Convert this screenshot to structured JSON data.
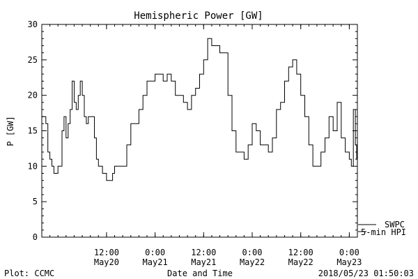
{
  "chart_data": {
    "type": "line",
    "title": "Hemispheric Power [GW]",
    "ylabel": "P [GW]",
    "xlabel": "Date and Time",
    "ylim": [
      0,
      30
    ],
    "yticks": [
      0,
      5,
      10,
      15,
      20,
      25,
      30
    ],
    "xlim": [
      "2018-05-19T20:00",
      "2018-05-23T02:00"
    ],
    "xticks": [
      {
        "time": "2018-05-20T12:00",
        "line1": "12:00",
        "line2": "May20"
      },
      {
        "time": "2018-05-21T00:00",
        "line1": "0:00",
        "line2": "May21"
      },
      {
        "time": "2018-05-21T12:00",
        "line1": "12:00",
        "line2": "May21"
      },
      {
        "time": "2018-05-22T00:00",
        "line1": "0:00",
        "line2": "May22"
      },
      {
        "time": "2018-05-22T12:00",
        "line1": "12:00",
        "line2": "May22"
      },
      {
        "time": "2018-05-23T00:00",
        "line1": "0:00",
        "line2": "May23"
      }
    ],
    "grid": false,
    "series": [
      {
        "name": "SWPC",
        "style": "solid",
        "x": [
          "2018-05-19T20:00",
          "2018-05-19T20:30",
          "2018-05-19T21:00",
          "2018-05-19T21:30",
          "2018-05-19T22:00",
          "2018-05-19T22:30",
          "2018-05-19T23:00",
          "2018-05-19T23:30",
          "2018-05-20T00:00",
          "2018-05-20T00:30",
          "2018-05-20T01:00",
          "2018-05-20T01:30",
          "2018-05-20T02:00",
          "2018-05-20T02:30",
          "2018-05-20T03:00",
          "2018-05-20T03:30",
          "2018-05-20T04:00",
          "2018-05-20T04:30",
          "2018-05-20T05:00",
          "2018-05-20T05:30",
          "2018-05-20T06:00",
          "2018-05-20T06:30",
          "2018-05-20T07:00",
          "2018-05-20T07:30",
          "2018-05-20T08:00",
          "2018-05-20T08:30",
          "2018-05-20T09:00",
          "2018-05-20T09:30",
          "2018-05-20T10:00",
          "2018-05-20T10:30",
          "2018-05-20T11:00",
          "2018-05-20T11:30",
          "2018-05-20T12:00",
          "2018-05-20T12:30",
          "2018-05-20T13:00",
          "2018-05-20T13:30",
          "2018-05-20T14:00",
          "2018-05-20T14:30",
          "2018-05-20T15:00",
          "2018-05-20T15:30",
          "2018-05-20T16:00",
          "2018-05-20T17:00",
          "2018-05-20T18:00",
          "2018-05-20T19:00",
          "2018-05-20T20:00",
          "2018-05-20T21:00",
          "2018-05-20T22:00",
          "2018-05-20T23:00",
          "2018-05-21T00:00",
          "2018-05-21T01:00",
          "2018-05-21T02:00",
          "2018-05-21T03:00",
          "2018-05-21T04:00",
          "2018-05-21T05:00",
          "2018-05-21T06:00",
          "2018-05-21T07:00",
          "2018-05-21T08:00",
          "2018-05-21T09:00",
          "2018-05-21T10:00",
          "2018-05-21T11:00",
          "2018-05-21T12:00",
          "2018-05-21T13:00",
          "2018-05-21T14:00",
          "2018-05-21T15:00",
          "2018-05-21T16:00",
          "2018-05-21T17:00",
          "2018-05-21T18:00",
          "2018-05-21T19:00",
          "2018-05-21T20:00",
          "2018-05-21T21:00",
          "2018-05-21T22:00",
          "2018-05-21T23:00",
          "2018-05-22T00:00",
          "2018-05-22T01:00",
          "2018-05-22T02:00",
          "2018-05-22T03:00",
          "2018-05-22T04:00",
          "2018-05-22T05:00",
          "2018-05-22T06:00",
          "2018-05-22T07:00",
          "2018-05-22T08:00",
          "2018-05-22T09:00",
          "2018-05-22T10:00",
          "2018-05-22T11:00",
          "2018-05-22T12:00",
          "2018-05-22T13:00",
          "2018-05-22T14:00",
          "2018-05-22T15:00",
          "2018-05-22T16:00",
          "2018-05-22T17:00",
          "2018-05-22T18:00",
          "2018-05-22T19:00",
          "2018-05-22T20:00",
          "2018-05-22T21:00",
          "2018-05-22T22:00",
          "2018-05-22T23:00",
          "2018-05-23T00:00",
          "2018-05-23T00:30",
          "2018-05-23T01:00",
          "2018-05-23T01:30",
          "2018-05-23T01:50"
        ],
        "y": [
          17,
          17,
          16,
          12,
          11,
          10,
          9,
          9,
          10,
          10,
          15,
          17,
          14,
          16,
          18,
          22,
          19,
          18,
          20,
          22,
          20,
          17,
          16,
          17,
          17,
          17,
          14,
          11,
          10,
          10,
          9,
          9,
          8,
          8,
          8,
          9,
          10,
          10,
          10,
          10,
          10,
          13,
          16,
          16,
          18,
          20,
          22,
          22,
          23,
          23,
          22,
          23,
          22,
          20,
          20,
          19,
          18,
          20,
          21,
          23,
          25,
          28,
          27,
          27,
          26,
          26,
          20,
          15,
          12,
          12,
          11,
          13,
          16,
          15,
          13,
          13,
          12,
          14,
          18,
          19,
          22,
          24,
          25,
          23,
          20,
          17,
          13,
          10,
          10,
          12,
          14,
          17,
          15,
          19,
          14,
          12,
          11,
          10,
          18,
          13,
          11
        ]
      }
    ]
  },
  "legend": {
    "swpc_label": "SWPC",
    "hpi_label": "5-min HPI"
  },
  "footer": {
    "left": "Plot: CCMC",
    "right": "2018/05/23 01:50:03"
  }
}
